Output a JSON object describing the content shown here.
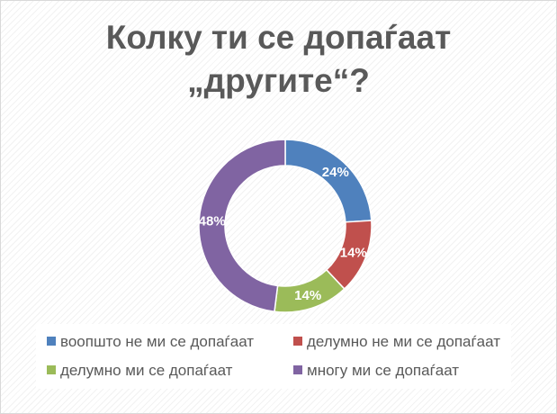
{
  "chart_data": {
    "type": "pie",
    "variant": "donut",
    "title_lines": [
      "Колку ти се допаѓаат",
      "„другите“?"
    ],
    "categories": [
      "воопшто не ми се допаѓаат",
      "делумно не ми се допаѓаат",
      "делумно ми се допаѓаат",
      "многу ми се допаѓаат"
    ],
    "values": [
      24,
      14,
      14,
      48
    ],
    "data_labels": [
      "24%",
      "14%",
      "14%",
      "48%"
    ],
    "colors": [
      "#4f81bd",
      "#c0504d",
      "#9bbb59",
      "#8064a2"
    ],
    "legend_position": "bottom"
  }
}
